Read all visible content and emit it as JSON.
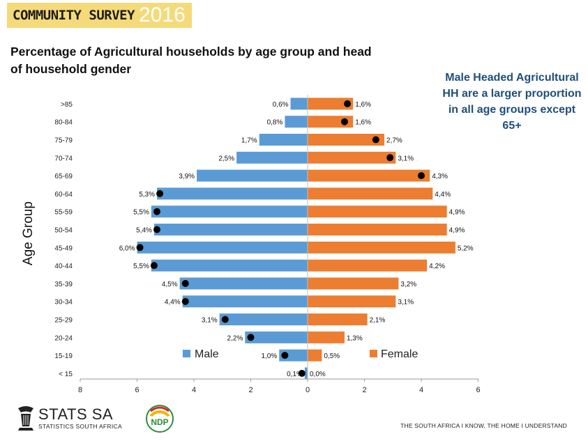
{
  "header": {
    "banner_text": "COMMUNITY SURVEY",
    "banner_year": "2016"
  },
  "chart_title": "Percentage of Agricultural households by age group and head of household gender",
  "callout": "Male Headed Agricultural HH are a larger proportion in all age groups except 65+",
  "footer": {
    "logo_main": "STATS SA",
    "logo_sub": "STATISTICS SOUTH AFRICA",
    "ndp_label": "NDP",
    "tagline": "THE SOUTH AFRICA I KNOW, THE HOME I UNDERSTAND"
  },
  "colors": {
    "male": "#5b9bd5",
    "female": "#ed7d31",
    "banner": "#f5da7a",
    "callout": "#1f4e79"
  },
  "chart_data": {
    "type": "bar",
    "orientation": "horizontal",
    "ylabel": "Age Group",
    "xlim": [
      -8,
      6
    ],
    "xticks": [
      -8,
      -6,
      -4,
      -2,
      0,
      2,
      4,
      6
    ],
    "xtick_labels": [
      "8",
      "6",
      "4",
      "2",
      "0",
      "2",
      "4",
      "6"
    ],
    "legend_position": "bottom",
    "categories": [
      ">85",
      "80-84",
      "75-79",
      "70-74",
      "65-69",
      "60-64",
      "55-59",
      "50-54",
      "45-49",
      "40-44",
      "35-39",
      "30-34",
      "25-29",
      "20-24",
      "15-19",
      "< 15"
    ],
    "series": [
      {
        "name": "Male",
        "values": [
          0.6,
          0.8,
          1.7,
          2.5,
          3.9,
          5.3,
          5.5,
          5.4,
          6.0,
          5.5,
          4.5,
          4.4,
          3.1,
          2.2,
          1.0,
          0.1
        ],
        "labels": [
          "0,6%",
          "0,8%",
          "1,7%",
          "2,5%",
          "3,9%",
          "5,3%",
          "5,5%",
          "5,4%",
          "6,0%",
          "5,5%",
          "4,5%",
          "4,4%",
          "3,1%",
          "2,2%",
          "1,0%",
          "0,1%"
        ],
        "markers": [
          null,
          null,
          null,
          null,
          null,
          5.2,
          5.3,
          5.3,
          5.9,
          5.4,
          4.3,
          4.3,
          2.9,
          2.0,
          0.8,
          0.2
        ]
      },
      {
        "name": "Female",
        "values": [
          1.6,
          1.6,
          2.7,
          3.1,
          4.3,
          4.4,
          4.9,
          4.9,
          5.2,
          4.2,
          3.2,
          3.1,
          2.1,
          1.3,
          0.5,
          0.0
        ],
        "labels": [
          "1,6%",
          "1,6%",
          "2,7%",
          "3,1%",
          "4,3%",
          "4,4%",
          "4,9%",
          "4,9%",
          "5,2%",
          "4,2%",
          "3,2%",
          "3,1%",
          "2,1%",
          "1,3%",
          "0,5%",
          "0,0%"
        ],
        "markers": [
          1.4,
          1.3,
          2.4,
          2.9,
          4.0,
          null,
          null,
          null,
          null,
          null,
          null,
          null,
          null,
          null,
          null,
          null
        ]
      }
    ]
  }
}
